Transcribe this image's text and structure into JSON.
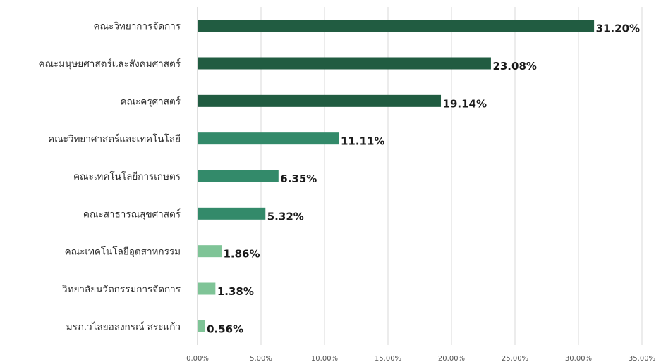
{
  "chart_data": {
    "type": "bar",
    "orientation": "horizontal",
    "categories": [
      "คณะวิทยาการจัดการ",
      "คณะมนุษยศาสตร์และสังคมศาสตร์",
      "คณะครุศาสตร์",
      "คณะวิทยาศาสตร์และเทคโนโลยี",
      "คณะเทคโนโลยีการเกษตร",
      "คณะสาธารณสุขศาสตร์",
      "คณะเทคโนโลยีอุตสาหกรรม",
      "วิทยาลัยนวัตกรรมการจัดการ",
      "มรภ.วไลยอลงกรณ์ สระแก้ว"
    ],
    "values": [
      31.2,
      23.08,
      19.14,
      11.11,
      6.35,
      5.32,
      1.86,
      1.38,
      0.56
    ],
    "value_labels": [
      "31.20%",
      "23.08%",
      "19.14%",
      "11.11%",
      "6.35%",
      "5.32%",
      "1.86%",
      "1.38%",
      "0.56%"
    ],
    "colors": [
      "#215c41",
      "#215c41",
      "#215c41",
      "#338a6a",
      "#338a6a",
      "#338a6a",
      "#7fc497",
      "#7fc497",
      "#7fc497"
    ],
    "xlim": [
      0,
      35
    ],
    "xticks": [
      "0.00%",
      "5.00%",
      "10.00%",
      "15.00%",
      "20.00%",
      "25.00%",
      "30.00%",
      "35.00%"
    ],
    "grid": true,
    "title": "",
    "xlabel": "",
    "ylabel": ""
  }
}
